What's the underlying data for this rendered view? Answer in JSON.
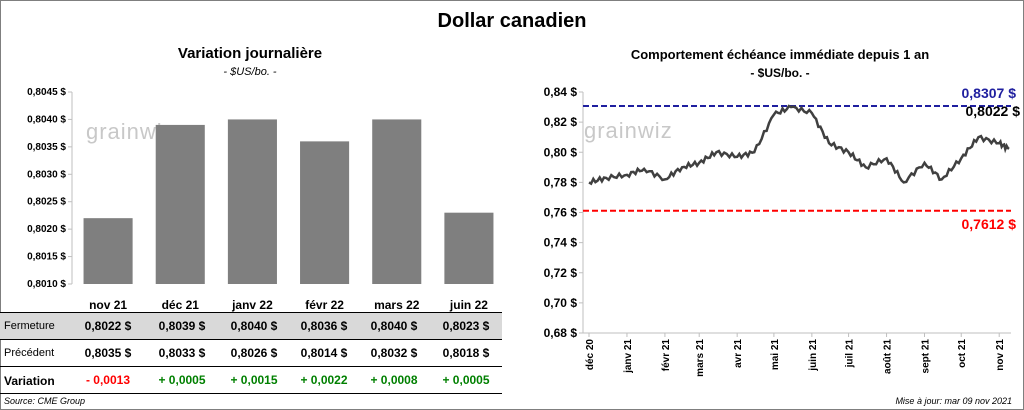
{
  "title": "Dollar canadien",
  "left_chart": {
    "title": "Variation  journalière",
    "subtitle": "- $US/bo. -",
    "watermark": "grainwiz"
  },
  "right_chart": {
    "title": "Comportement échéance immédiate depuis 1 an",
    "subtitle": "- $US/bo. -",
    "watermark": "grainwiz",
    "high_label": "0,8307 $",
    "low_label": "0,7612 $",
    "last_label": "0,8022 $"
  },
  "table": {
    "rows": [
      {
        "label": "Fermeture",
        "values": [
          "0,8022  $",
          "0,8039  $",
          "0,8040  $",
          "0,8036  $",
          "0,8040  $",
          "0,8023  $"
        ]
      },
      {
        "label": "Précédent",
        "values": [
          "0,8035  $",
          "0,8033  $",
          "0,8026  $",
          "0,8014  $",
          "0,8032  $",
          "0,8018  $"
        ]
      },
      {
        "label": "Variation",
        "values": [
          "- 0,0013",
          "+ 0,0005",
          "+ 0,0015",
          "+ 0,0022",
          "+ 0,0008",
          "+ 0,0005"
        ]
      }
    ]
  },
  "footer": {
    "source": "Source: CME Group",
    "updated": "Mise à jour: mar 09 nov 2021"
  },
  "colors": {
    "bar": "#7f7f7f",
    "line": "#404040",
    "high": "#1f1f9f",
    "low": "#ff0000",
    "up": "#008000",
    "down": "#ff0000",
    "shaded_row": "#d9d9d9"
  },
  "chart_data": [
    {
      "type": "bar",
      "title": "Variation  journalière",
      "subtitle": "- $US/bo. -",
      "categories": [
        "nov 21",
        "déc 21",
        "janv 22",
        "févr 22",
        "mars 22",
        "juin 22"
      ],
      "values": [
        0.8022,
        0.8039,
        0.804,
        0.8036,
        0.804,
        0.8023
      ],
      "ylim": [
        0.801,
        0.8045
      ],
      "yticks": [
        0.801,
        0.8015,
        0.802,
        0.8025,
        0.803,
        0.8035,
        0.804,
        0.8045
      ],
      "ytick_labels": [
        "0,8010 $",
        "0,8015 $",
        "0,8020 $",
        "0,8025 $",
        "0,8030 $",
        "0,8035 $",
        "0,8040 $",
        "0,8045 $"
      ],
      "grid": false
    },
    {
      "type": "line",
      "title": "Comportement échéance immédiate depuis 1 an",
      "subtitle": "- $US/bo. -",
      "ylim": [
        0.68,
        0.84
      ],
      "yticks": [
        0.68,
        0.7,
        0.72,
        0.74,
        0.76,
        0.78,
        0.8,
        0.82,
        0.84
      ],
      "ytick_labels": [
        "0,68 $",
        "0,70 $",
        "0,72 $",
        "0,74 $",
        "0,76 $",
        "0,78 $",
        "0,80 $",
        "0,82 $",
        "0,84 $"
      ],
      "x_ticks": [
        "déc 20",
        "janv 21",
        "févr 21",
        "mars 21",
        "avr 21",
        "mai 21",
        "juin 21",
        "juil 21",
        "août 21",
        "sept 21",
        "oct 21",
        "nov 21"
      ],
      "x": [
        "2020-12-01",
        "2020-12-15",
        "2021-01-01",
        "2021-01-15",
        "2021-02-01",
        "2021-02-15",
        "2021-03-01",
        "2021-03-15",
        "2021-04-01",
        "2021-04-15",
        "2021-05-01",
        "2021-05-15",
        "2021-06-01",
        "2021-06-15",
        "2021-07-01",
        "2021-07-15",
        "2021-08-01",
        "2021-08-15",
        "2021-09-01",
        "2021-09-15",
        "2021-10-01",
        "2021-10-15",
        "2021-11-01",
        "2021-11-09"
      ],
      "values": [
        0.78,
        0.783,
        0.785,
        0.789,
        0.782,
        0.79,
        0.793,
        0.8,
        0.797,
        0.8,
        0.825,
        0.83,
        0.826,
        0.806,
        0.8,
        0.79,
        0.796,
        0.78,
        0.793,
        0.782,
        0.796,
        0.81,
        0.806,
        0.8022
      ],
      "hlines": [
        {
          "value": 0.8307,
          "label": "0,8307 $",
          "color": "#1f1f9f",
          "style": "dashed"
        },
        {
          "value": 0.7612,
          "label": "0,7612 $",
          "color": "#ff0000",
          "style": "dashed"
        }
      ],
      "last_value_label": "0,8022 $",
      "grid": false
    }
  ]
}
